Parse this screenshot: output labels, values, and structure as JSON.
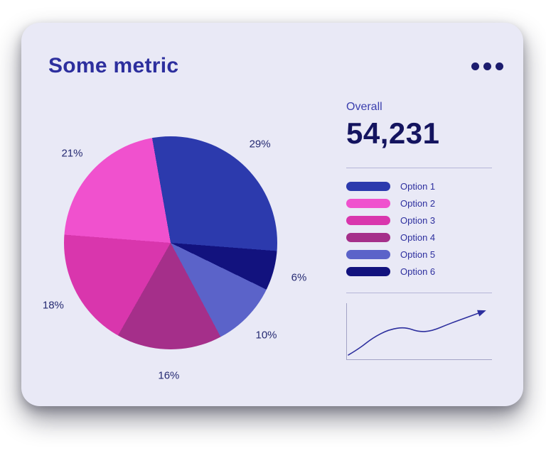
{
  "card": {
    "title": "Some metric",
    "menu_icon": "kebab-menu-dots",
    "stats": {
      "overall_label": "Overall",
      "overall_value": "54,231"
    }
  },
  "colors": {
    "card_bg": "#e9e9f6",
    "title_text": "#2d2f9e",
    "value_text": "#14145f",
    "pie_label_text": "#252a72",
    "divider": "#b5b5d8",
    "axis": "#a3a3c6",
    "trend_line": "#2d2f9e",
    "menu_dots": "#1c1c6e"
  },
  "chart_data": [
    {
      "type": "pie",
      "title": "Some metric",
      "rotation_deg": -10,
      "value_suffix": "%",
      "legend_position": "right",
      "slices": [
        {
          "label": "Option 1",
          "value": 29,
          "color": "#2c3aad"
        },
        {
          "label": "Option 6",
          "value": 6,
          "color": "#12127e"
        },
        {
          "label": "Option 5",
          "value": 10,
          "color": "#5b63c9"
        },
        {
          "label": "Option 4",
          "value": 16,
          "color": "#a52f8a"
        },
        {
          "label": "Option 3",
          "value": 18,
          "color": "#d936ad"
        },
        {
          "label": "Option 2",
          "value": 21,
          "color": "#f051ce"
        }
      ],
      "legend": [
        {
          "label": "Option 1",
          "color": "#2c3aad"
        },
        {
          "label": "Option 2",
          "color": "#f051ce"
        },
        {
          "label": "Option 3",
          "color": "#d936ad"
        },
        {
          "label": "Option 4",
          "color": "#a52f8a"
        },
        {
          "label": "Option 5",
          "color": "#5b63c9"
        },
        {
          "label": "Option 6",
          "color": "#12127e"
        }
      ]
    },
    {
      "type": "line",
      "name": "trend-sparkline",
      "axes": "left-bottom",
      "arrow_end": true,
      "xlim": [
        0,
        1
      ],
      "ylim": [
        0,
        1
      ],
      "points": [
        [
          0.0,
          0.03
        ],
        [
          0.08,
          0.16
        ],
        [
          0.18,
          0.38
        ],
        [
          0.3,
          0.55
        ],
        [
          0.42,
          0.6
        ],
        [
          0.52,
          0.5
        ],
        [
          0.62,
          0.52
        ],
        [
          0.74,
          0.66
        ],
        [
          0.88,
          0.8
        ],
        [
          1.0,
          0.92
        ]
      ]
    }
  ]
}
